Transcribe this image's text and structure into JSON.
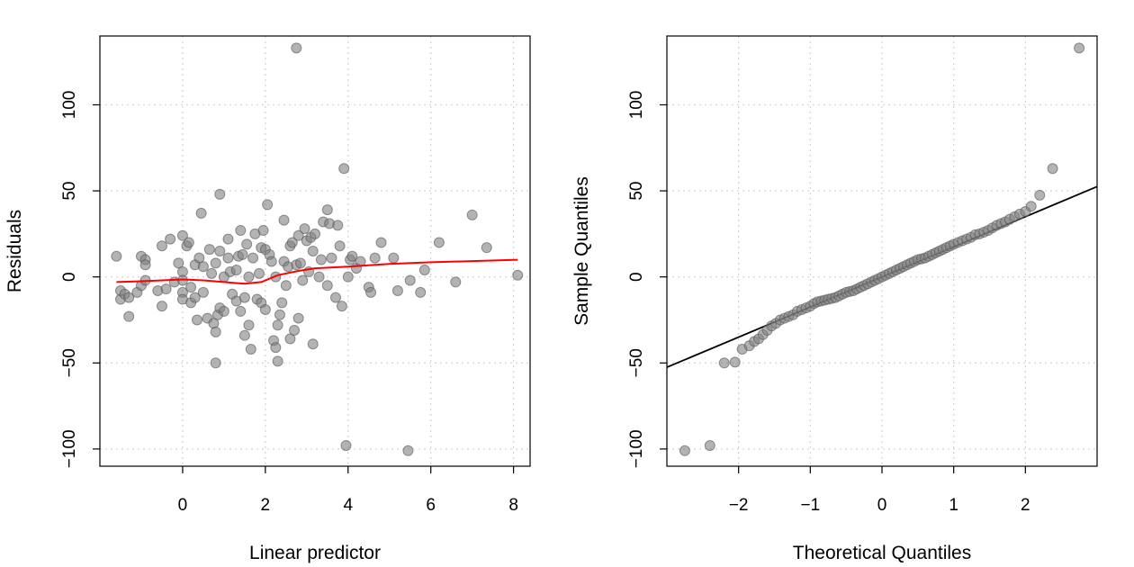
{
  "chart_data": [
    {
      "type": "scatter",
      "title": "",
      "xlabel": "Linear predictor",
      "ylabel": "Residuals",
      "xlim": [
        -2.0,
        8.4
      ],
      "ylim": [
        -110,
        140
      ],
      "xticks": [
        0,
        2,
        4,
        6,
        8
      ],
      "yticks": [
        -100,
        -50,
        0,
        50,
        100
      ],
      "xtick_labels": [
        "0",
        "2",
        "4",
        "6",
        "8"
      ],
      "ytick_labels": [
        "−100",
        "−50",
        "0",
        "50",
        "100"
      ],
      "grid": true,
      "point_color": "#808080",
      "smooth_color": "#ff0000",
      "points": [
        [
          -1.6,
          12
        ],
        [
          -1.5,
          -13
        ],
        [
          -1.5,
          -8
        ],
        [
          -1.4,
          -10
        ],
        [
          -1.3,
          -23
        ],
        [
          -1.3,
          -12
        ],
        [
          -1.1,
          -9
        ],
        [
          -1.0,
          12
        ],
        [
          -1.0,
          -5
        ],
        [
          -0.9,
          10
        ],
        [
          -0.9,
          7
        ],
        [
          -0.9,
          -2
        ],
        [
          -0.6,
          -8
        ],
        [
          -0.5,
          18
        ],
        [
          -0.5,
          -17
        ],
        [
          -0.4,
          -7
        ],
        [
          -0.3,
          22
        ],
        [
          -0.2,
          -3
        ],
        [
          -0.1,
          8
        ],
        [
          0.0,
          24
        ],
        [
          0.0,
          3
        ],
        [
          0.0,
          -2
        ],
        [
          0.0,
          -9
        ],
        [
          0.0,
          -13
        ],
        [
          0.1,
          18
        ],
        [
          0.15,
          20
        ],
        [
          0.2,
          -6
        ],
        [
          0.2,
          -15
        ],
        [
          0.3,
          -12
        ],
        [
          0.3,
          7
        ],
        [
          0.35,
          -25
        ],
        [
          0.4,
          11
        ],
        [
          0.45,
          37
        ],
        [
          0.5,
          6
        ],
        [
          0.5,
          -9
        ],
        [
          0.6,
          -24
        ],
        [
          0.65,
          16
        ],
        [
          0.7,
          2
        ],
        [
          0.75,
          -27
        ],
        [
          0.8,
          8
        ],
        [
          0.8,
          -32
        ],
        [
          0.8,
          -50
        ],
        [
          0.85,
          -22
        ],
        [
          0.9,
          48
        ],
        [
          0.9,
          15
        ],
        [
          0.9,
          -18
        ],
        [
          1.0,
          0
        ],
        [
          1.0,
          -20
        ],
        [
          1.1,
          11
        ],
        [
          1.1,
          22
        ],
        [
          1.15,
          3
        ],
        [
          1.2,
          -10
        ],
        [
          1.3,
          4
        ],
        [
          1.3,
          -14
        ],
        [
          1.35,
          12
        ],
        [
          1.4,
          -20
        ],
        [
          1.4,
          27
        ],
        [
          1.45,
          13
        ],
        [
          1.5,
          -12
        ],
        [
          1.5,
          -34
        ],
        [
          1.55,
          19
        ],
        [
          1.6,
          0
        ],
        [
          1.6,
          -28
        ],
        [
          1.65,
          -42
        ],
        [
          1.7,
          11
        ],
        [
          1.75,
          25
        ],
        [
          1.8,
          -13
        ],
        [
          1.85,
          2
        ],
        [
          1.9,
          17
        ],
        [
          1.9,
          -15
        ],
        [
          1.95,
          27
        ],
        [
          2.0,
          16
        ],
        [
          2.0,
          -19
        ],
        [
          2.05,
          42
        ],
        [
          2.1,
          13
        ],
        [
          2.15,
          9
        ],
        [
          2.2,
          -37
        ],
        [
          2.25,
          -41
        ],
        [
          2.25,
          0
        ],
        [
          2.3,
          -49
        ],
        [
          2.3,
          -28
        ],
        [
          2.35,
          -22
        ],
        [
          2.4,
          -15
        ],
        [
          2.45,
          9
        ],
        [
          2.45,
          33
        ],
        [
          2.5,
          -5
        ],
        [
          2.55,
          6
        ],
        [
          2.6,
          -36
        ],
        [
          2.6,
          18
        ],
        [
          2.65,
          20
        ],
        [
          2.7,
          -31
        ],
        [
          2.75,
          133
        ],
        [
          2.75,
          7
        ],
        [
          2.8,
          -24
        ],
        [
          2.8,
          24
        ],
        [
          2.85,
          8
        ],
        [
          2.9,
          -2
        ],
        [
          2.95,
          28
        ],
        [
          3.0,
          21
        ],
        [
          3.05,
          3
        ],
        [
          3.1,
          23
        ],
        [
          3.15,
          15
        ],
        [
          3.15,
          -39
        ],
        [
          3.2,
          25
        ],
        [
          3.3,
          0
        ],
        [
          3.35,
          10
        ],
        [
          3.4,
          32
        ],
        [
          3.5,
          39
        ],
        [
          3.5,
          -5
        ],
        [
          3.55,
          31
        ],
        [
          3.6,
          11
        ],
        [
          3.7,
          -12
        ],
        [
          3.75,
          30
        ],
        [
          3.8,
          18
        ],
        [
          3.85,
          -17
        ],
        [
          3.9,
          63
        ],
        [
          3.95,
          -98
        ],
        [
          4.0,
          0
        ],
        [
          4.05,
          10
        ],
        [
          4.1,
          12
        ],
        [
          4.2,
          5
        ],
        [
          4.3,
          9
        ],
        [
          4.5,
          -6
        ],
        [
          4.55,
          -9
        ],
        [
          4.65,
          11
        ],
        [
          4.8,
          20
        ],
        [
          5.1,
          11
        ],
        [
          5.2,
          -8
        ],
        [
          5.45,
          -101
        ],
        [
          5.5,
          -2
        ],
        [
          5.75,
          -9
        ],
        [
          5.85,
          4
        ],
        [
          6.2,
          20
        ],
        [
          6.6,
          -3
        ],
        [
          7.0,
          36
        ],
        [
          7.35,
          17
        ],
        [
          8.1,
          1
        ]
      ],
      "smooth": [
        [
          -1.6,
          -3
        ],
        [
          -1.0,
          -2.5
        ],
        [
          0.0,
          -1.5
        ],
        [
          0.5,
          -2
        ],
        [
          1.0,
          -3
        ],
        [
          1.5,
          -4
        ],
        [
          1.9,
          -3
        ],
        [
          2.3,
          1
        ],
        [
          2.8,
          3.5
        ],
        [
          3.2,
          5
        ],
        [
          4.0,
          6
        ],
        [
          5.0,
          7.5
        ],
        [
          6.0,
          8.5
        ],
        [
          7.0,
          9.2
        ],
        [
          8.1,
          10
        ]
      ]
    },
    {
      "type": "scatter",
      "title": "",
      "xlabel": "Theoretical Quantiles",
      "ylabel": "Sample Quantiles",
      "xlim": [
        -3.0,
        3.0
      ],
      "ylim": [
        -110,
        140
      ],
      "xticks": [
        -2,
        -1,
        0,
        1,
        2
      ],
      "yticks": [
        -100,
        -50,
        0,
        50,
        100
      ],
      "xtick_labels": [
        "−2",
        "−1",
        "0",
        "1",
        "2"
      ],
      "ytick_labels": [
        "−100",
        "−50",
        "0",
        "50",
        "100"
      ],
      "grid": true,
      "point_color": "#808080",
      "line_color": "#000000",
      "points": [
        [
          -2.75,
          -101
        ],
        [
          -2.4,
          -98
        ],
        [
          -2.2,
          -50
        ],
        [
          -2.05,
          -49.5
        ],
        [
          -1.95,
          -42
        ],
        [
          -1.85,
          -40
        ],
        [
          -1.78,
          -37.5
        ],
        [
          -1.72,
          -36
        ],
        [
          -1.66,
          -33.5
        ],
        [
          -1.6,
          -31
        ],
        [
          -1.54,
          -28.5
        ],
        [
          -1.48,
          -27
        ],
        [
          -1.42,
          -25
        ],
        [
          -1.36,
          -24
        ],
        [
          -1.3,
          -23
        ],
        [
          -1.24,
          -22
        ],
        [
          -1.18,
          -20
        ],
        [
          -1.12,
          -19
        ],
        [
          -1.06,
          -18
        ],
        [
          -1.0,
          -17
        ],
        [
          -0.95,
          -15.5
        ],
        [
          -0.9,
          -14.5
        ],
        [
          -0.85,
          -14
        ],
        [
          -0.8,
          -13.5
        ],
        [
          -0.75,
          -13
        ],
        [
          -0.7,
          -12.5
        ],
        [
          -0.65,
          -12
        ],
        [
          -0.6,
          -11
        ],
        [
          -0.55,
          -10
        ],
        [
          -0.5,
          -9
        ],
        [
          -0.45,
          -8.5
        ],
        [
          -0.4,
          -8
        ],
        [
          -0.35,
          -7
        ],
        [
          -0.3,
          -6
        ],
        [
          -0.25,
          -5
        ],
        [
          -0.2,
          -4
        ],
        [
          -0.15,
          -3
        ],
        [
          -0.1,
          -2
        ],
        [
          -0.05,
          -1
        ],
        [
          0.0,
          0
        ],
        [
          0.05,
          1
        ],
        [
          0.1,
          2
        ],
        [
          0.15,
          3
        ],
        [
          0.2,
          4
        ],
        [
          0.25,
          5
        ],
        [
          0.3,
          6
        ],
        [
          0.35,
          7
        ],
        [
          0.4,
          8
        ],
        [
          0.45,
          9
        ],
        [
          0.5,
          10
        ],
        [
          0.55,
          10.5
        ],
        [
          0.6,
          11
        ],
        [
          0.65,
          12
        ],
        [
          0.7,
          13
        ],
        [
          0.75,
          14
        ],
        [
          0.8,
          15
        ],
        [
          0.85,
          16
        ],
        [
          0.9,
          17
        ],
        [
          0.95,
          18
        ],
        [
          1.0,
          19
        ],
        [
          1.06,
          20
        ],
        [
          1.12,
          21
        ],
        [
          1.18,
          22
        ],
        [
          1.24,
          23
        ],
        [
          1.3,
          24.5
        ],
        [
          1.36,
          25
        ],
        [
          1.42,
          26
        ],
        [
          1.48,
          27
        ],
        [
          1.54,
          28.5
        ],
        [
          1.6,
          30
        ],
        [
          1.66,
          31
        ],
        [
          1.72,
          32
        ],
        [
          1.78,
          33.5
        ],
        [
          1.85,
          35
        ],
        [
          1.92,
          36.5
        ],
        [
          2.0,
          38
        ],
        [
          2.08,
          41
        ],
        [
          2.2,
          47.5
        ],
        [
          2.38,
          63
        ],
        [
          2.75,
          133
        ]
      ],
      "line": [
        [
          -3.0,
          -52.5
        ],
        [
          3.0,
          52.5
        ]
      ]
    }
  ]
}
